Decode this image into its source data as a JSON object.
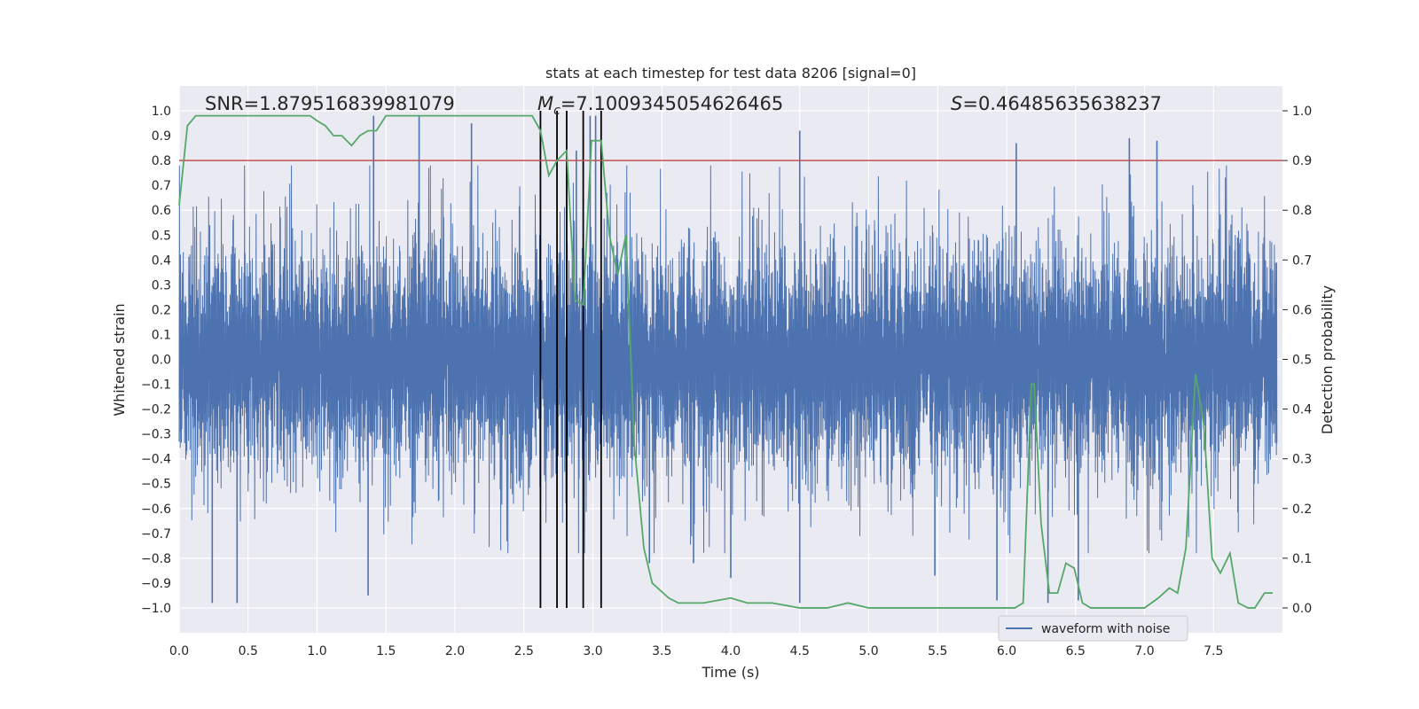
{
  "chart_data": {
    "type": "line",
    "title": "stats at each timestep for test data 8206 [signal=0]",
    "xlabel": "Time (s)",
    "ylabel": "Whitened strain",
    "ylabel_right": "Detection probability",
    "xlim": [
      0.0,
      8.0
    ],
    "ylim": [
      -1.1,
      1.1
    ],
    "ylim_right": [
      -0.05,
      1.05
    ],
    "x_ticks": [
      "0.0",
      "0.5",
      "1.0",
      "1.5",
      "2.0",
      "2.5",
      "3.0",
      "3.5",
      "4.0",
      "4.5",
      "5.0",
      "5.5",
      "6.0",
      "6.5",
      "7.0",
      "7.5"
    ],
    "y_ticks": [
      "1.0",
      "0.9",
      "0.8",
      "0.7",
      "0.6",
      "0.5",
      "0.4",
      "0.3",
      "0.2",
      "0.1",
      "0.0",
      "−0.1",
      "−0.2",
      "−0.3",
      "−0.4",
      "−0.5",
      "−0.6",
      "−0.7",
      "−0.8",
      "−0.9",
      "−1.0"
    ],
    "y_ticks_right": [
      "1.0",
      "0.9",
      "0.8",
      "0.7",
      "0.6",
      "0.5",
      "0.4",
      "0.3",
      "0.2",
      "0.1",
      "0.0"
    ],
    "grid": true,
    "annotations": {
      "snr": "SNR=1.879516839981079",
      "mc_symbol": "M",
      "mc_sub": "c",
      "mc_value": "=7.1009345054626465",
      "s_symbol": "S",
      "s_value": "=0.46485635638237"
    },
    "threshold": {
      "value_right": 0.9,
      "color": "#c44e52"
    },
    "vertical_markers": [
      2.62,
      2.74,
      2.81,
      2.93,
      3.06
    ],
    "series": [
      {
        "name": "waveform with noise",
        "axis": "left",
        "color": "#4c72b0",
        "kind": "noise",
        "sample_step": 0.002,
        "note": "dense whitened-strain noise; peaks mostly within ±0.5, occasional spikes to ±1.0",
        "prominent_spikes": [
          {
            "x": 0.24,
            "y": -0.98
          },
          {
            "x": 0.42,
            "y": -0.98
          },
          {
            "x": 1.37,
            "y": -0.95
          },
          {
            "x": 1.41,
            "y": 0.98
          },
          {
            "x": 1.74,
            "y": 0.98
          },
          {
            "x": 2.12,
            "y": 0.95
          },
          {
            "x": 2.98,
            "y": 0.98
          },
          {
            "x": 3.02,
            "y": 0.98
          },
          {
            "x": 3.41,
            "y": -0.82
          },
          {
            "x": 4.5,
            "y": 0.92
          },
          {
            "x": 4.5,
            "y": -0.98
          },
          {
            "x": 4.0,
            "y": -0.88
          },
          {
            "x": 6.52,
            "y": -0.97
          },
          {
            "x": 5.93,
            "y": -0.97
          },
          {
            "x": 6.3,
            "y": -0.98
          },
          {
            "x": 6.89,
            "y": 0.89
          },
          {
            "x": 7.09,
            "y": 0.88
          },
          {
            "x": 5.48,
            "y": -0.87
          },
          {
            "x": 2.88,
            "y": 0.84
          },
          {
            "x": 6.07,
            "y": 0.87
          },
          {
            "x": 3.73,
            "y": -0.82
          }
        ]
      },
      {
        "name": "detection probability",
        "axis": "right",
        "color": "#55a868",
        "x": [
          0.0,
          0.06,
          0.12,
          0.2,
          0.3,
          0.4,
          0.5,
          0.6,
          0.7,
          0.8,
          0.87,
          0.95,
          1.0,
          1.06,
          1.12,
          1.18,
          1.25,
          1.31,
          1.37,
          1.43,
          1.5,
          1.6,
          1.7,
          1.8,
          1.9,
          2.0,
          2.1,
          2.2,
          2.3,
          2.4,
          2.5,
          2.56,
          2.62,
          2.68,
          2.74,
          2.81,
          2.87,
          2.93,
          2.99,
          3.06,
          3.12,
          3.18,
          3.24,
          3.3,
          3.37,
          3.43,
          3.55,
          3.62,
          3.7,
          3.8,
          4.0,
          4.12,
          4.2,
          4.3,
          4.5,
          4.7,
          4.85,
          5.0,
          5.2,
          5.4,
          5.6,
          5.8,
          5.95,
          6.06,
          6.12,
          6.18,
          6.2,
          6.25,
          6.31,
          6.37,
          6.43,
          6.49,
          6.55,
          6.61,
          6.68,
          6.8,
          6.9,
          7.0,
          7.1,
          7.18,
          7.24,
          7.3,
          7.37,
          7.43,
          7.49,
          7.55,
          7.62,
          7.68,
          7.75,
          7.8,
          7.87,
          7.93
        ],
        "values": [
          0.81,
          0.97,
          0.99,
          0.99,
          0.99,
          0.99,
          0.99,
          0.99,
          0.99,
          0.99,
          0.99,
          0.99,
          0.98,
          0.97,
          0.95,
          0.95,
          0.93,
          0.95,
          0.96,
          0.96,
          0.99,
          0.99,
          0.99,
          0.99,
          0.99,
          0.99,
          0.99,
          0.99,
          0.99,
          0.99,
          0.99,
          0.99,
          0.96,
          0.87,
          0.9,
          0.92,
          0.62,
          0.61,
          0.94,
          0.94,
          0.75,
          0.67,
          0.75,
          0.33,
          0.12,
          0.05,
          0.02,
          0.01,
          0.01,
          0.01,
          0.02,
          0.01,
          0.01,
          0.01,
          0.0,
          0.0,
          0.01,
          0.0,
          0.0,
          0.0,
          0.0,
          0.0,
          0.0,
          0.0,
          0.01,
          0.45,
          0.45,
          0.17,
          0.03,
          0.03,
          0.09,
          0.08,
          0.01,
          0.0,
          0.0,
          0.0,
          0.0,
          0.0,
          0.02,
          0.04,
          0.03,
          0.12,
          0.47,
          0.37,
          0.1,
          0.07,
          0.11,
          0.01,
          0.0,
          0.0,
          0.03,
          0.03
        ]
      }
    ],
    "legend": {
      "placement": "lower-right",
      "entries": [
        "waveform with noise"
      ]
    }
  }
}
